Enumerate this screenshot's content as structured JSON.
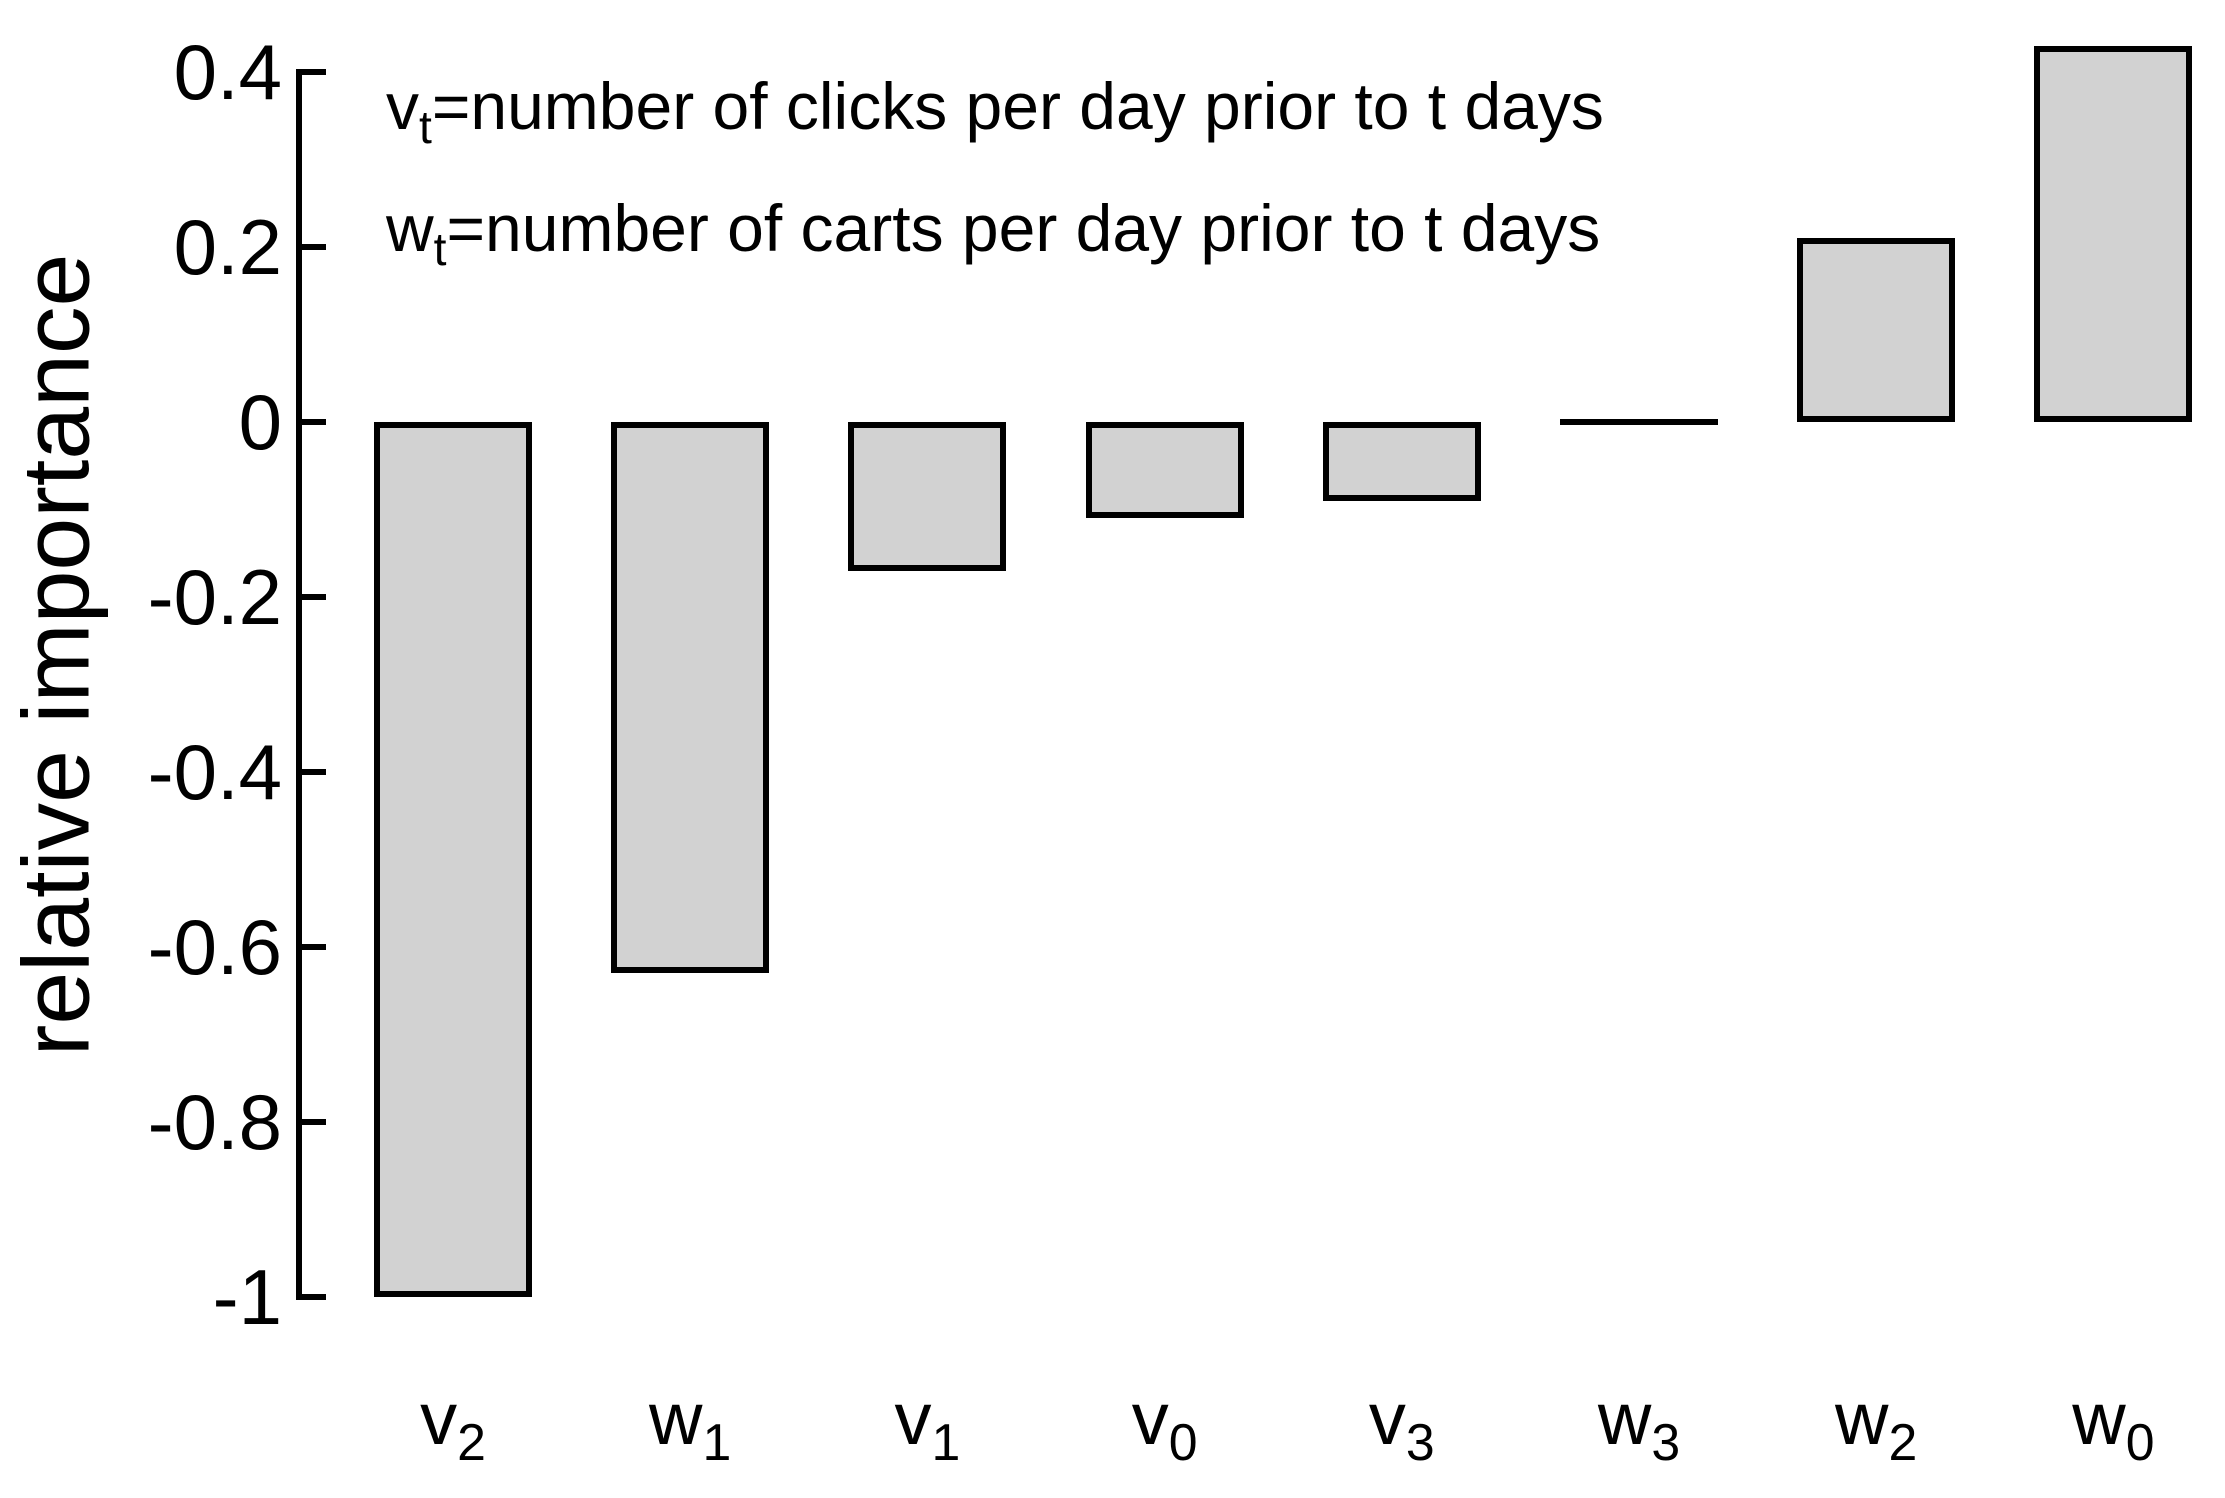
{
  "figure": {
    "background": "#ffffff"
  },
  "chart_data": {
    "type": "bar",
    "title": "",
    "xlabel": "",
    "ylabel": "relative importance",
    "categories": [
      "v2",
      "w1",
      "v1",
      "v0",
      "v3",
      "w3",
      "w2",
      "w0"
    ],
    "category_parts": [
      {
        "base": "v",
        "sub": "2"
      },
      {
        "base": "w",
        "sub": "1"
      },
      {
        "base": "v",
        "sub": "1"
      },
      {
        "base": "v",
        "sub": "0"
      },
      {
        "base": "v",
        "sub": "3"
      },
      {
        "base": "w",
        "sub": "3"
      },
      {
        "base": "w",
        "sub": "2"
      },
      {
        "base": "w",
        "sub": "0"
      }
    ],
    "values": [
      -1.0,
      -0.63,
      -0.17,
      -0.11,
      -0.09,
      0.0,
      0.21,
      0.43
    ],
    "ylim": [
      -1.0,
      0.45
    ],
    "yticks": [
      0.4,
      0.2,
      0,
      -0.2,
      -0.4,
      -0.6,
      -0.8,
      -1
    ],
    "ytick_labels": [
      "0.4",
      "0.2",
      "0",
      "-0.2",
      "-0.4",
      "-0.6",
      "-0.8",
      "-1"
    ],
    "grid": false,
    "legend": "none",
    "tick_direction": "in",
    "bar_fill_color": "#d2d2d2",
    "bar_border_color": "#000000",
    "axis_color": "#000000",
    "annotations": [
      {
        "base": "v",
        "sub": "t",
        "rest": "=number of clicks per day prior to t days"
      },
      {
        "base": "w",
        "sub": "t",
        "rest": "=number of carts per day prior to t days"
      }
    ]
  }
}
